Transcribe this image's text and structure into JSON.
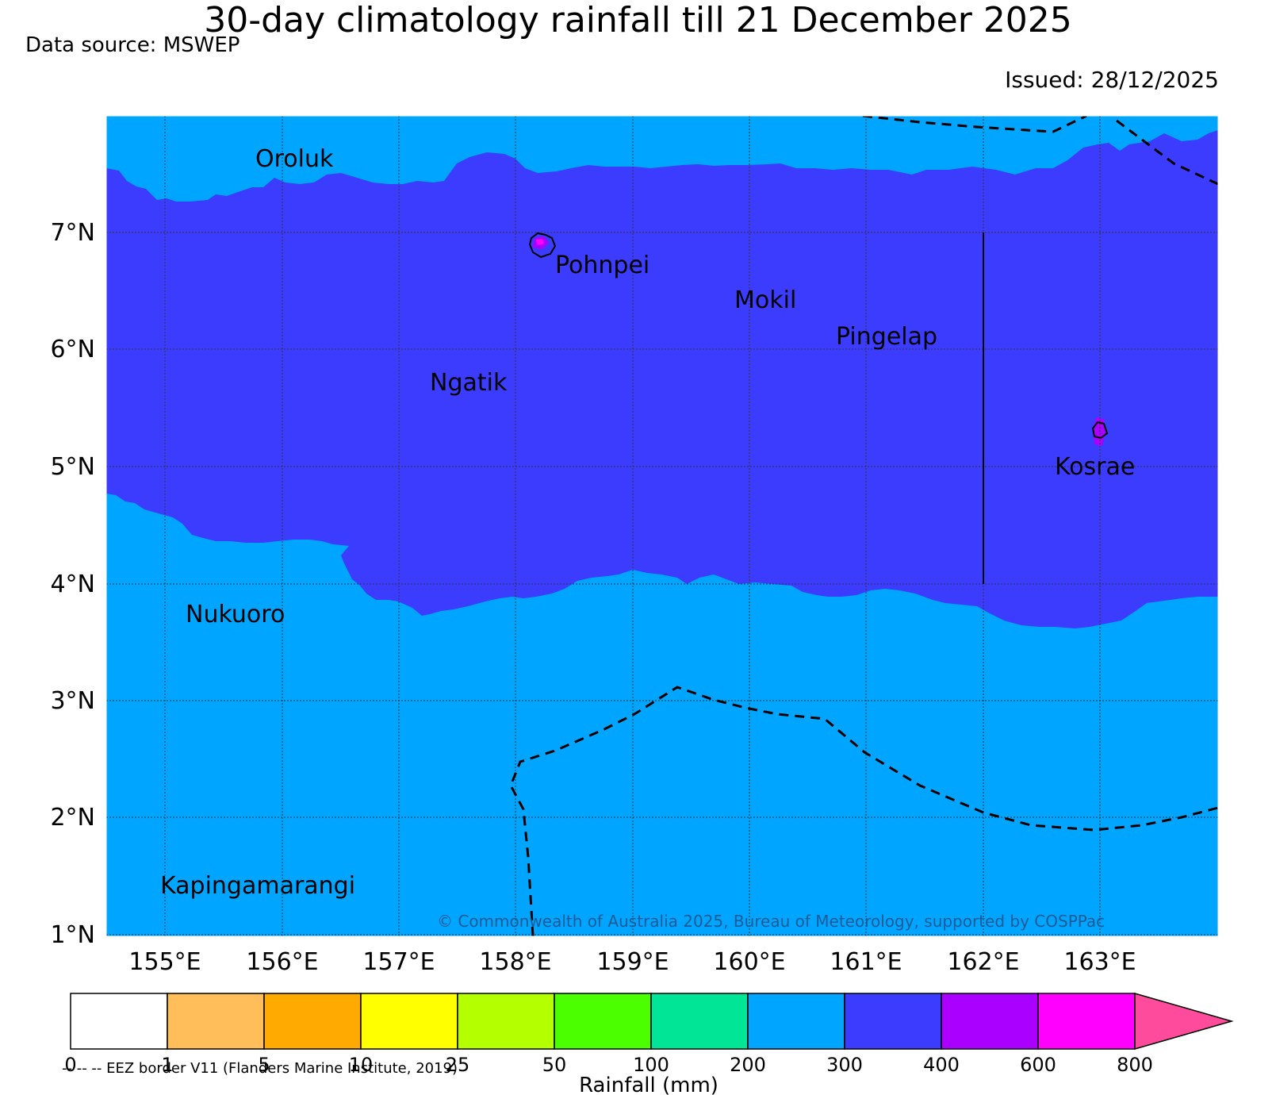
{
  "title": "30-day climatology rainfall till 21 December 2025",
  "data_source": "Data source: MSWEP",
  "issued": "Issued: 28/12/2025",
  "copyright": "© Commonwealth of Australia 2025, Bureau of Meteorology, supported by COSPPac",
  "eez_note": "-- -- -- EEZ border V11 (Flanders Marine Institute, 2019)",
  "colorbar_label": "Rainfall (mm)",
  "axes": {
    "lat_ticks": [
      "7°N",
      "6°N",
      "5°N",
      "4°N",
      "3°N",
      "2°N",
      "1°N"
    ],
    "lon_ticks": [
      "155°E",
      "156°E",
      "157°E",
      "158°E",
      "159°E",
      "160°E",
      "161°E",
      "162°E",
      "163°E"
    ]
  },
  "places": {
    "oroluk": "Oroluk",
    "pohnpei": "Pohnpei",
    "mokil": "Mokil",
    "pingelap": "Pingelap",
    "ngatik": "Ngatik",
    "kosrae": "Kosrae",
    "nukuoro": "Nukuoro",
    "kapingamarangi": "Kapingamarangi"
  },
  "colorbar": {
    "boundaries": [
      "0",
      "1",
      "5",
      "10",
      "25",
      "50",
      "100",
      "200",
      "300",
      "400",
      "600",
      "800"
    ],
    "colors": [
      "#ffffff",
      "#ffbe5a",
      "#ffaa00",
      "#ffff00",
      "#b4ff00",
      "#4cff00",
      "#00e696",
      "#00a5ff",
      "#3c3cff",
      "#aa00ff",
      "#ff00ff",
      "#ff4b9b"
    ]
  },
  "fill_colors": {
    "band_200_300": "#00a5ff",
    "band_300_400": "#3c3cff",
    "band_400_600": "#aa00ff",
    "band_600_800": "#ff00ff"
  }
}
